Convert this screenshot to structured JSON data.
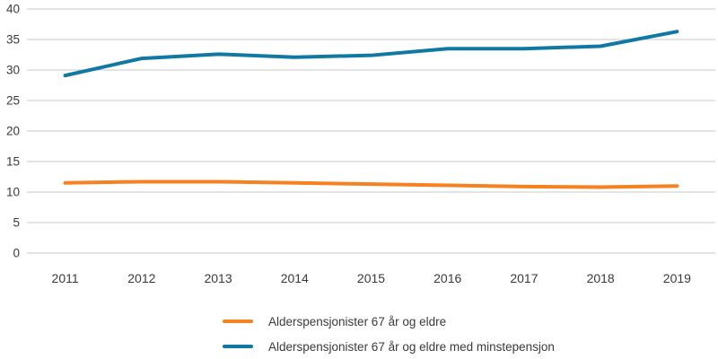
{
  "chart_data": {
    "type": "line",
    "title": "",
    "xlabel": "",
    "ylabel": "",
    "x": [
      2011,
      2012,
      2013,
      2014,
      2015,
      2016,
      2017,
      2018,
      2019
    ],
    "series": [
      {
        "name": "Alderspensjonister 67 år og eldre",
        "color": "#f58120",
        "values": [
          11.5,
          11.7,
          11.7,
          11.5,
          11.3,
          11.1,
          10.9,
          10.8,
          11.0
        ]
      },
      {
        "name": "Alderspensjonister 67 år og eldre med minstepensjon",
        "color": "#1178a4",
        "values": [
          29.1,
          31.9,
          32.6,
          32.1,
          32.4,
          33.5,
          33.5,
          33.9,
          36.3
        ]
      }
    ],
    "ylim": [
      0,
      40
    ],
    "ytick_step": 5,
    "grid": true,
    "legend_position": "bottom"
  },
  "colors": {
    "grid": "#c9c9c9",
    "text": "#3a3a38",
    "background": "#ffffff"
  }
}
